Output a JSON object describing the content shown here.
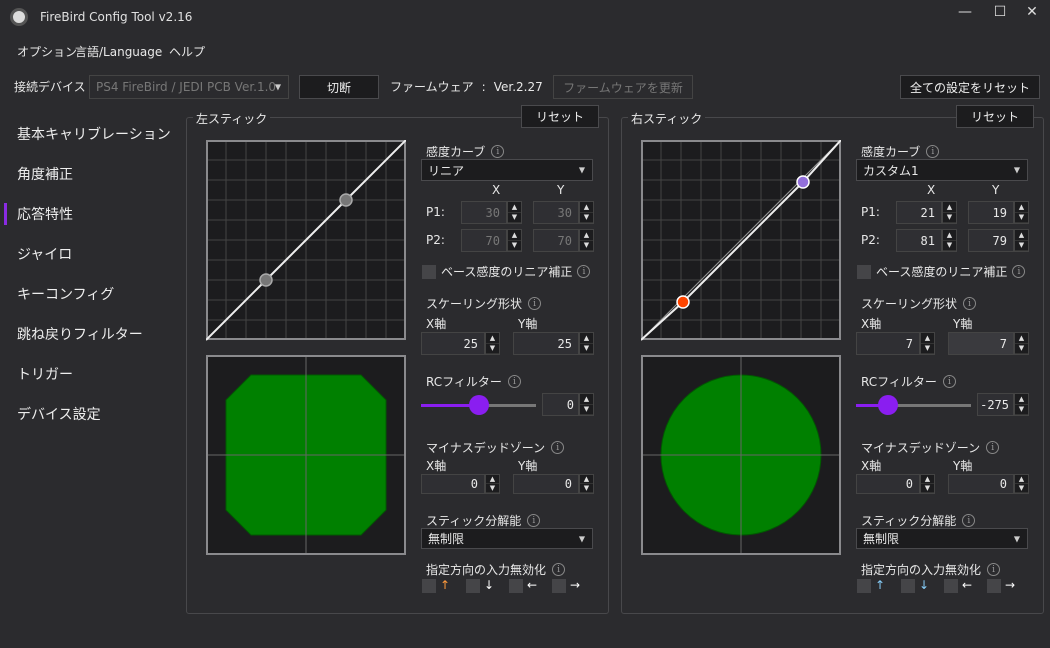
{
  "window": {
    "title": "FireBird Config Tool v2.16",
    "minimize": "—",
    "maximize": "☐",
    "close": "✕"
  },
  "menu": [
    "オプション",
    "言語/Language",
    "ヘルプ"
  ],
  "toolbar": {
    "device_label": "接続デバイス",
    "device_value": "PS4 FireBird / JEDI PCB Ver.1.0",
    "disconnect": "切断",
    "firmware_label": "ファームウェア",
    "firmware_sep": ":",
    "firmware_version": "Ver.2.27",
    "firmware_update": "ファームウェアを更新",
    "reset_all": "全ての設定をリセット"
  },
  "sidebar": {
    "active": 2,
    "items": [
      "基本キャリブレーション",
      "角度補正",
      "応答特性",
      "ジャイロ",
      "キーコンフィグ",
      "跳ね戻りフィルター",
      "トリガー",
      "デバイス設定"
    ]
  },
  "accent": "#8a1ef0",
  "labels": {
    "reset": "リセット",
    "curve": "感度カーブ",
    "x": "X",
    "y": "Y",
    "p1": "P1:",
    "p2": "P2:",
    "linear_fix": "ベース感度のリニア補正",
    "scaling": "スケーリング形状",
    "x_axis": "X軸",
    "y_axis": "Y軸",
    "rc": "RCフィルター",
    "deadzone": "マイナスデッドゾーン",
    "resolution": "スティック分解能",
    "disable_dir": "指定方向の入力無効化",
    "up": "↑",
    "down": "↓",
    "left": "←",
    "right": "→",
    "info": "i"
  },
  "panels": [
    {
      "title": "左スティック",
      "curve": "リニア",
      "p1": {
        "x": "30",
        "y": "30"
      },
      "p2": {
        "x": "70",
        "y": "70"
      },
      "points_enabled": false,
      "p1_color": "#777777",
      "p2_color": "#777777",
      "linear_fix": false,
      "scaling": {
        "x": "25",
        "y": "25"
      },
      "rc": "0",
      "rc_level": 0.5,
      "deadzone": {
        "x": "0",
        "y": "0"
      },
      "resolution": "無制限",
      "up_color": "#ff9a3c",
      "down_color": "#ffffff"
    },
    {
      "title": "右スティック",
      "curve": "カスタム1",
      "p1": {
        "x": "21",
        "y": "19"
      },
      "p2": {
        "x": "81",
        "y": "79"
      },
      "points_enabled": true,
      "p1_color": "#ff4500",
      "p2_color": "#9370db",
      "linear_fix": false,
      "scaling": {
        "x": "7",
        "y": "7"
      },
      "rc": "-275",
      "rc_level": 0.28,
      "deadzone": {
        "x": "0",
        "y": "0"
      },
      "resolution": "無制限",
      "up_color": "#87cefa",
      "down_color": "#87cefa"
    }
  ]
}
